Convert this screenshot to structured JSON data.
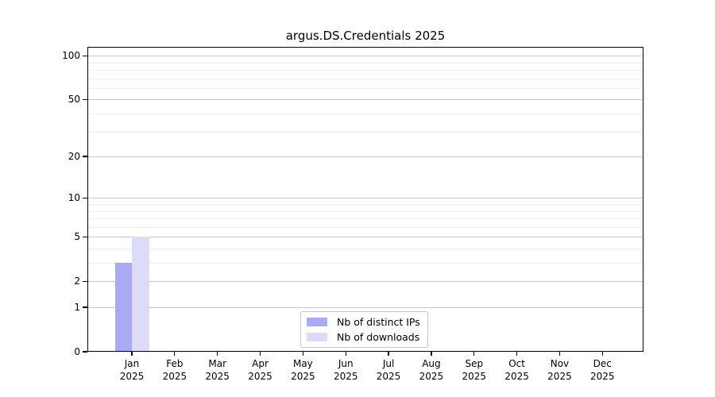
{
  "title": "argus.DS.Credentials 2025",
  "chart_data": {
    "type": "bar",
    "title": "argus.DS.Credentials 2025",
    "categories": [
      {
        "month": "Jan",
        "year": "2025"
      },
      {
        "month": "Feb",
        "year": "2025"
      },
      {
        "month": "Mar",
        "year": "2025"
      },
      {
        "month": "Apr",
        "year": "2025"
      },
      {
        "month": "May",
        "year": "2025"
      },
      {
        "month": "Jun",
        "year": "2025"
      },
      {
        "month": "Jul",
        "year": "2025"
      },
      {
        "month": "Aug",
        "year": "2025"
      },
      {
        "month": "Sep",
        "year": "2025"
      },
      {
        "month": "Oct",
        "year": "2025"
      },
      {
        "month": "Nov",
        "year": "2025"
      },
      {
        "month": "Dec",
        "year": "2025"
      }
    ],
    "series": [
      {
        "name": "Nb of distinct IPs",
        "color": "#aaaaf4",
        "values": [
          3,
          0,
          0,
          0,
          0,
          0,
          0,
          0,
          0,
          0,
          0,
          0
        ]
      },
      {
        "name": "Nb of downloads",
        "color": "#dcdcf8",
        "values": [
          5,
          0,
          0,
          0,
          0,
          0,
          0,
          0,
          0,
          0,
          0,
          0
        ]
      }
    ],
    "xlabel": "",
    "ylabel": "",
    "yscale": "symlog",
    "ylim": [
      0,
      115
    ],
    "y_ticks": [
      0,
      1,
      2,
      5,
      10,
      20,
      50,
      100
    ],
    "y_minor_gridlines": [
      3,
      4,
      6,
      7,
      8,
      9,
      30,
      40,
      60,
      70,
      80,
      90
    ],
    "grid": true,
    "legend_position": "lower center"
  },
  "colors": {
    "background": "#ffffff",
    "axis": "#000000",
    "grid_major": "#c9c9c9",
    "grid_minor": "#efefef"
  }
}
